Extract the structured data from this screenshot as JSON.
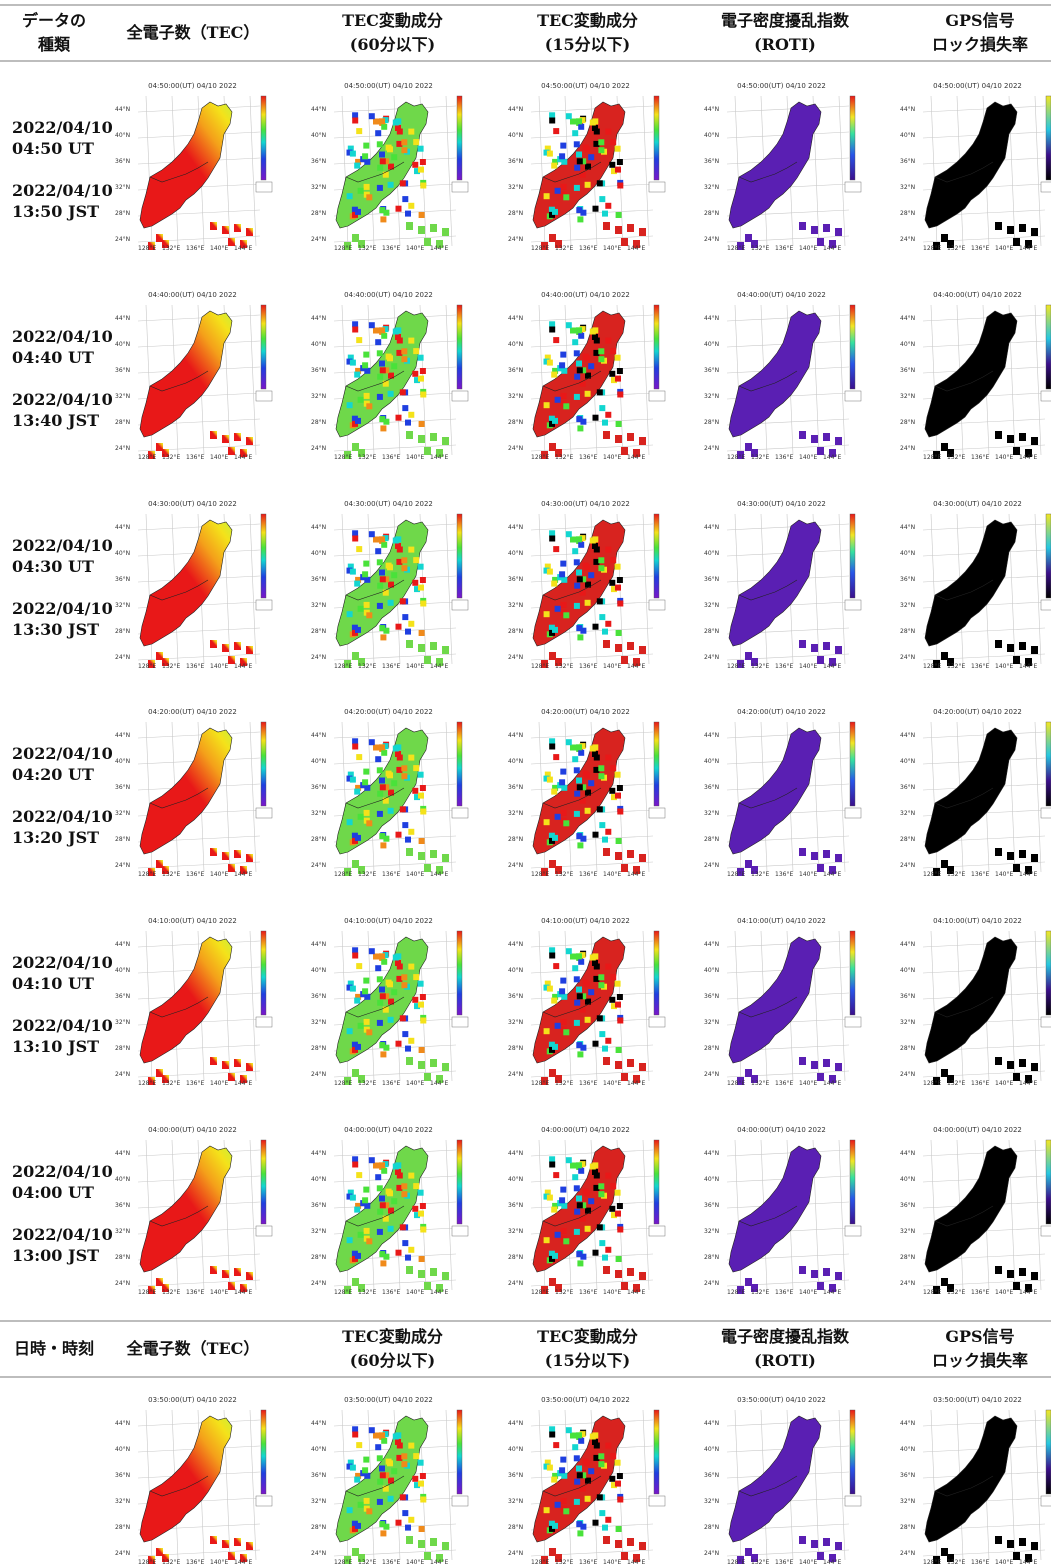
{
  "header_top": {
    "col0": {
      "line1": "データの",
      "line2": "種類"
    },
    "col1": {
      "line1": "全電子数（TEC）"
    },
    "col2": {
      "line1": "TEC変動成分",
      "line2": "(60分以下)"
    },
    "col3": {
      "line1": "TEC変動成分",
      "line2": "(15分以下)"
    },
    "col4": {
      "line1": "電子密度擾乱指数",
      "line2": "(ROTI)"
    },
    "col5": {
      "line1": "GPS信号",
      "line2": "ロック損失率"
    }
  },
  "header_bottom": {
    "col0": {
      "line1": "日時・時刻"
    },
    "col1": {
      "line1": "全電子数（TEC）"
    },
    "col2": {
      "line1": "TEC変動成分",
      "line2": "(60分以下)"
    },
    "col3": {
      "line1": "TEC変動成分",
      "line2": "(15分以下)"
    },
    "col4": {
      "line1": "電子密度擾乱指数",
      "line2": "(ROTI)"
    },
    "col5": {
      "line1": "GPS信号",
      "line2": "ロック損失率"
    }
  },
  "rows": [
    {
      "ut_date": "2022/04/10",
      "ut_time": "04:50 UT",
      "jst_date": "2022/04/10",
      "jst_time": "13:50 JST",
      "map_title": "04:50:00(UT) 04/10 2022"
    },
    {
      "ut_date": "2022/04/10",
      "ut_time": "04:40 UT",
      "jst_date": "2022/04/10",
      "jst_time": "13:40 JST",
      "map_title": "04:40:00(UT) 04/10 2022"
    },
    {
      "ut_date": "2022/04/10",
      "ut_time": "04:30 UT",
      "jst_date": "2022/04/10",
      "jst_time": "13:30 JST",
      "map_title": "04:30:00(UT) 04/10 2022"
    },
    {
      "ut_date": "2022/04/10",
      "ut_time": "04:20 UT",
      "jst_date": "2022/04/10",
      "jst_time": "13:20 JST",
      "map_title": "04:20:00(UT) 04/10 2022"
    },
    {
      "ut_date": "2022/04/10",
      "ut_time": "04:10 UT",
      "jst_date": "2022/04/10",
      "jst_time": "13:10 JST",
      "map_title": "04:10:00(UT) 04/10 2022"
    },
    {
      "ut_date": "2022/04/10",
      "ut_time": "04:00 UT",
      "jst_date": "2022/04/10",
      "jst_time": "13:00 JST",
      "map_title": "04:00:00(UT) 04/10 2022"
    }
  ],
  "next_section": {
    "map_title": "03:50:00(UT) 04/10 2022"
  },
  "map_axes": {
    "lat_labels": [
      "44°N",
      "40°N",
      "36°N",
      "32°N",
      "28°N",
      "24°N"
    ],
    "lon_labels": [
      "128°E",
      "132°E",
      "136°E",
      "140°E",
      "144°E"
    ]
  },
  "map_kinds": [
    "tec",
    "dtec60",
    "dtec15",
    "roti",
    "lol"
  ],
  "colors": {
    "header_rule": "#bdbdbd",
    "tec_high": "#e81818",
    "tec_mid": "#f4c21f",
    "tec_low": "#c8f03a",
    "roti": "#5a1fb3",
    "lol": "#000000"
  }
}
